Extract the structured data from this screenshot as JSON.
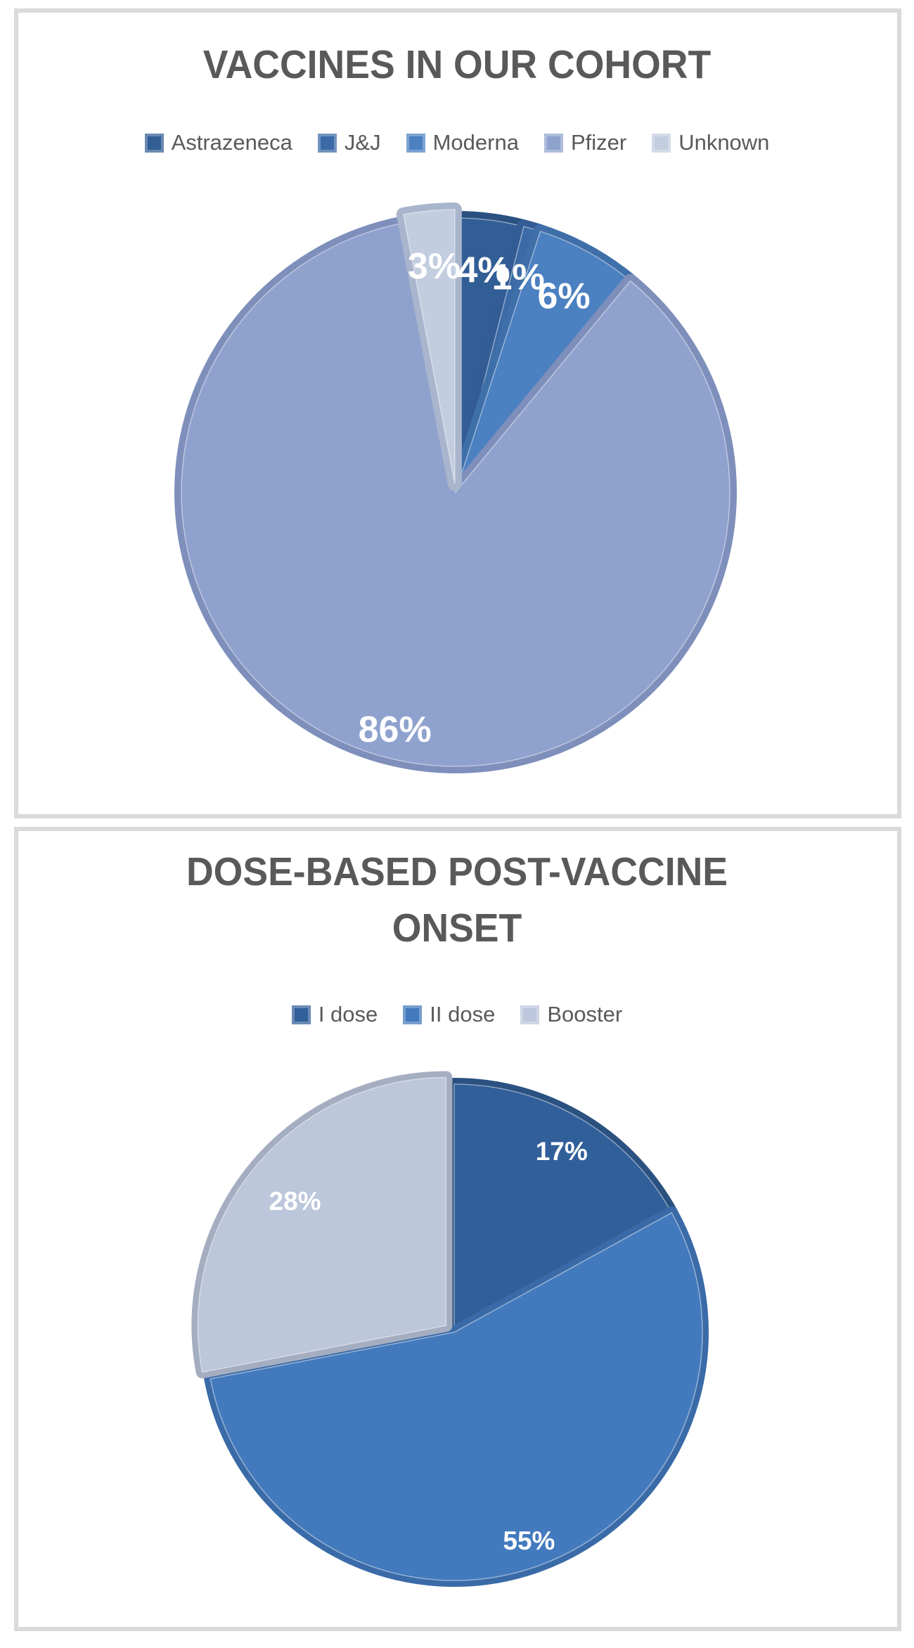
{
  "page": {
    "background": "#ffffff",
    "panel_border_color": "#dadada",
    "title_color": "#595959",
    "legend_text_color": "#595959",
    "slice_label_color": "#ffffff"
  },
  "chart_data": [
    {
      "type": "pie",
      "title": "VACCINES IN OUR COHORT",
      "legend_position": "top",
      "start_angle_deg": 0,
      "direction": "clockwise",
      "units": "percent",
      "slices": [
        {
          "name": "Astrazeneca",
          "value": 4,
          "label": "4%",
          "color": "#315e95",
          "rim_color": "#2a5180"
        },
        {
          "name": "J&J",
          "value": 1,
          "label": "1%",
          "color": "#3b6aa6",
          "rim_color": "#335c95"
        },
        {
          "name": "Moderna",
          "value": 6,
          "label": "6%",
          "color": "#4b80c1",
          "rim_color": "#3f6fa9"
        },
        {
          "name": "Pfizer",
          "value": 86,
          "label": "86%",
          "color": "#8fa2ce",
          "rim_color": "#7e8fbb"
        },
        {
          "name": "Unknown",
          "value": 3,
          "label": "3%",
          "color": "#c3cde0",
          "rim_color": "#a9b5cc"
        }
      ],
      "legend": [
        "Astrazeneca",
        "J&J",
        "Moderna",
        "Pfizer",
        "Unknown"
      ]
    },
    {
      "type": "pie",
      "title": "DOSE-BASED POST-VACCINE ONSET",
      "legend_position": "top",
      "start_angle_deg": 0,
      "direction": "clockwise",
      "units": "percent",
      "slices": [
        {
          "name": "I dose",
          "value": 17,
          "label": "17%",
          "color": "#315f9a",
          "rim_color": "#2a5180"
        },
        {
          "name": "II dose",
          "value": 55,
          "label": "55%",
          "color": "#437abd",
          "rim_color": "#3a6ba8"
        },
        {
          "name": "Booster",
          "value": 28,
          "label": "28%",
          "color": "#bcc7dc",
          "rim_color": "#a5aec1"
        }
      ],
      "legend": [
        "I dose",
        "II dose",
        "Booster"
      ]
    }
  ]
}
